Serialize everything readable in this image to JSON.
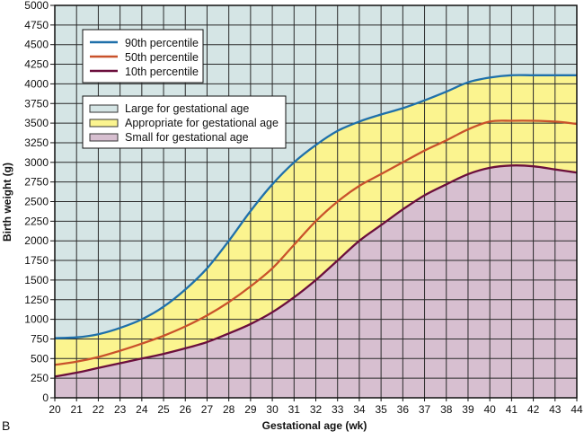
{
  "panel_label": "B",
  "chart_data": {
    "type": "line",
    "title": "",
    "xlabel": "Gestational age (wk)",
    "ylabel": "Birth weight (g)",
    "xlim": [
      20,
      44
    ],
    "ylim": [
      0,
      5000
    ],
    "grid": true,
    "x": [
      20,
      21,
      22,
      23,
      24,
      25,
      26,
      27,
      28,
      29,
      30,
      31,
      32,
      33,
      34,
      35,
      36,
      37,
      38,
      39,
      40,
      41,
      42,
      43,
      44
    ],
    "x_ticks": [
      20,
      21,
      22,
      23,
      24,
      25,
      26,
      27,
      28,
      29,
      30,
      31,
      32,
      33,
      34,
      35,
      36,
      37,
      38,
      39,
      40,
      41,
      42,
      43,
      44
    ],
    "y_ticks": [
      0,
      250,
      500,
      750,
      1000,
      1250,
      1500,
      1750,
      2000,
      2250,
      2500,
      2750,
      3000,
      3250,
      3500,
      3750,
      4000,
      4250,
      4500,
      4750,
      5000
    ],
    "series": [
      {
        "name": "90th percentile",
        "color": "#1f70aa",
        "values": [
          760,
          770,
          810,
          890,
          1000,
          1160,
          1380,
          1650,
          2000,
          2380,
          2720,
          3000,
          3220,
          3400,
          3520,
          3610,
          3690,
          3790,
          3900,
          4020,
          4080,
          4110,
          4110,
          4110,
          4110
        ]
      },
      {
        "name": "50th percentile",
        "color": "#c9522b",
        "values": [
          420,
          460,
          520,
          600,
          690,
          790,
          910,
          1050,
          1220,
          1420,
          1650,
          1950,
          2250,
          2500,
          2700,
          2850,
          3000,
          3150,
          3280,
          3420,
          3520,
          3530,
          3530,
          3520,
          3490
        ]
      },
      {
        "name": "10th percentile",
        "color": "#6b0f3c",
        "values": [
          270,
          320,
          380,
          440,
          500,
          560,
          630,
          710,
          820,
          940,
          1090,
          1280,
          1500,
          1750,
          2000,
          2200,
          2400,
          2580,
          2720,
          2850,
          2930,
          2960,
          2950,
          2910,
          2870
        ]
      }
    ],
    "regions": [
      {
        "name": "Large for gestational age",
        "color": "#d5e5e5"
      },
      {
        "name": "Appropriate for gestational age",
        "color": "#fbf48f"
      },
      {
        "name": "Small for gestational age",
        "color": "#d7bfd0"
      }
    ],
    "legend_placement": "top-left"
  }
}
